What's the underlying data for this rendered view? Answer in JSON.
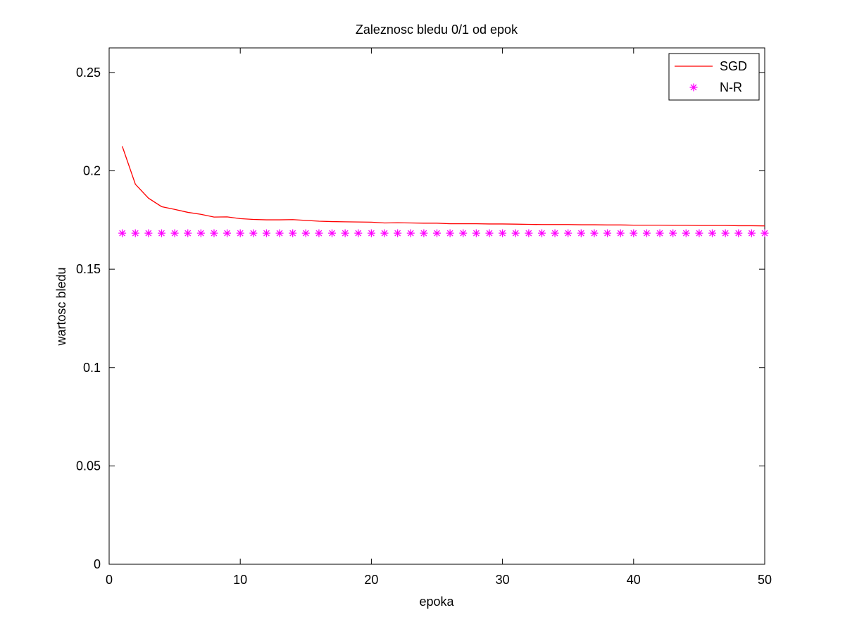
{
  "chart_data": {
    "type": "line",
    "title": "Zaleznosc bledu 0/1 od epok",
    "xlabel": "epoka",
    "ylabel": "wartosc bledu",
    "xlim": [
      0,
      50
    ],
    "ylim": [
      0,
      0.2625
    ],
    "xticks": [
      0,
      10,
      20,
      30,
      40,
      50
    ],
    "yticks": [
      0,
      0.05,
      0.1,
      0.15,
      0.2,
      0.25
    ],
    "xtick_labels": [
      "0",
      "10",
      "20",
      "30",
      "40",
      "50"
    ],
    "ytick_labels": [
      "0",
      "0.05",
      "0.1",
      "0.15",
      "0.2",
      "0.25"
    ],
    "grid": false,
    "legend_position": "top-right",
    "series": [
      {
        "name": "SGD",
        "style": "line",
        "color": "#ff0000",
        "x": [
          1,
          2,
          3,
          4,
          5,
          6,
          7,
          8,
          9,
          10,
          11,
          12,
          13,
          14,
          15,
          16,
          17,
          18,
          19,
          20,
          21,
          22,
          23,
          24,
          25,
          26,
          27,
          28,
          29,
          30,
          31,
          32,
          33,
          34,
          35,
          36,
          37,
          38,
          39,
          40,
          41,
          42,
          43,
          44,
          45,
          46,
          47,
          48,
          49,
          50
        ],
        "values": [
          0.2125,
          0.1932,
          0.1861,
          0.1818,
          0.1804,
          0.1789,
          0.1779,
          0.1765,
          0.1766,
          0.1757,
          0.1753,
          0.1751,
          0.1751,
          0.1752,
          0.1748,
          0.1744,
          0.1742,
          0.1741,
          0.174,
          0.1739,
          0.1735,
          0.1736,
          0.1735,
          0.1734,
          0.1734,
          0.1731,
          0.1731,
          0.1731,
          0.173,
          0.173,
          0.1729,
          0.1728,
          0.1727,
          0.1727,
          0.1727,
          0.1726,
          0.1726,
          0.1725,
          0.1725,
          0.1724,
          0.1724,
          0.1724,
          0.1723,
          0.1723,
          0.1722,
          0.1722,
          0.1722,
          0.1721,
          0.1721,
          0.172
        ]
      },
      {
        "name": "N-R",
        "style": "marker-asterisk",
        "color": "#ff00ff",
        "x": [
          1,
          2,
          3,
          4,
          5,
          6,
          7,
          8,
          9,
          10,
          11,
          12,
          13,
          14,
          15,
          16,
          17,
          18,
          19,
          20,
          21,
          22,
          23,
          24,
          25,
          26,
          27,
          28,
          29,
          30,
          31,
          32,
          33,
          34,
          35,
          36,
          37,
          38,
          39,
          40,
          41,
          42,
          43,
          44,
          45,
          46,
          47,
          48,
          49,
          50
        ],
        "values": [
          0.1683,
          0.1683,
          0.1683,
          0.1683,
          0.1683,
          0.1683,
          0.1683,
          0.1683,
          0.1683,
          0.1683,
          0.1683,
          0.1683,
          0.1683,
          0.1683,
          0.1683,
          0.1683,
          0.1683,
          0.1683,
          0.1683,
          0.1683,
          0.1683,
          0.1683,
          0.1683,
          0.1683,
          0.1683,
          0.1683,
          0.1683,
          0.1683,
          0.1683,
          0.1683,
          0.1683,
          0.1683,
          0.1683,
          0.1683,
          0.1683,
          0.1683,
          0.1683,
          0.1683,
          0.1683,
          0.1683,
          0.1683,
          0.1683,
          0.1683,
          0.1683,
          0.1683,
          0.1683,
          0.1683,
          0.1683,
          0.1683,
          0.1683
        ]
      }
    ]
  }
}
